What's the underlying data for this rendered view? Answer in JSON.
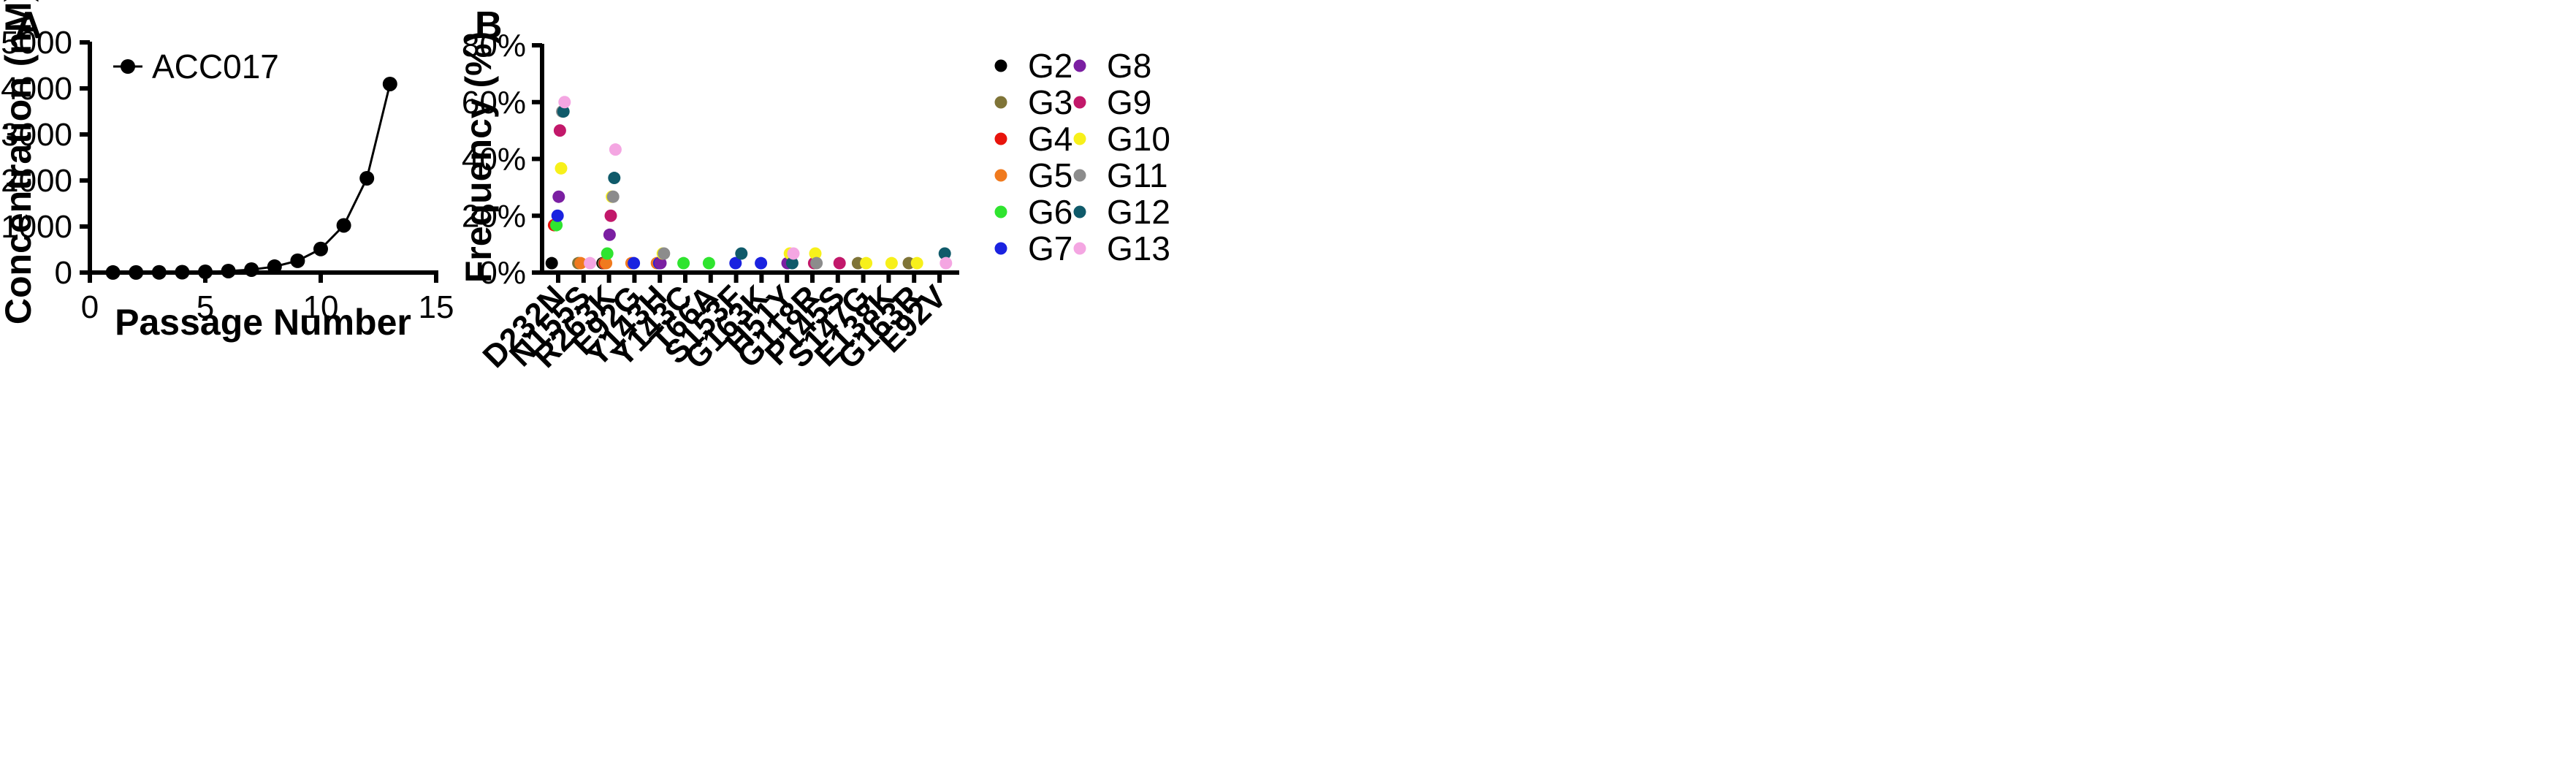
{
  "chart_data": [
    {
      "panel": "A",
      "type": "line",
      "title": "",
      "xlabel": "Passage Number",
      "ylabel": "Concentration (nM)",
      "xlim": [
        0,
        15
      ],
      "ylim": [
        0,
        5000
      ],
      "xticks": [
        0,
        5,
        10,
        15
      ],
      "yticks": [
        0,
        1000,
        2000,
        3000,
        4000,
        5000
      ],
      "grid": false,
      "legend_position": "top-left",
      "series": [
        {
          "name": "ACC017",
          "color": "#000000",
          "marker": "circle",
          "x": [
            1,
            2,
            3,
            4,
            5,
            6,
            7,
            8,
            9,
            10,
            11,
            12,
            13
          ],
          "y": [
            1,
            2,
            4,
            8,
            16,
            32,
            64,
            128,
            256,
            512,
            1024,
            2048,
            4096
          ]
        }
      ]
    },
    {
      "panel": "B",
      "type": "scatter",
      "title": "",
      "xlabel": "",
      "ylabel": "Frequency (%)",
      "ylim": [
        0,
        80
      ],
      "yticks": [
        0,
        20,
        40,
        60,
        80
      ],
      "ytick_labels": [
        "0%",
        "20%",
        "40%",
        "60%",
        "80%"
      ],
      "grid": false,
      "legend_position": "right",
      "categories": [
        "D232N",
        "N155S",
        "R263K",
        "E92G",
        "Y143H",
        "Y143C",
        "T66A",
        "S153F",
        "G163K",
        "H51Y",
        "G118R",
        "P145S",
        "S147G",
        "E138K",
        "G163R",
        "E92V"
      ],
      "series": [
        {
          "name": "G2",
          "color": "#000000",
          "points": [
            {
              "category": "D232N",
              "value": 3.3
            },
            {
              "category": "R263K",
              "value": 3.3
            }
          ]
        },
        {
          "name": "G3",
          "color": "#7f7437",
          "points": [
            {
              "category": "N155S",
              "value": 3.3
            },
            {
              "category": "R263K",
              "value": 3.3
            },
            {
              "category": "S147G",
              "value": 3.3
            },
            {
              "category": "G163R",
              "value": 3.3
            }
          ]
        },
        {
          "name": "G4",
          "color": "#e8140c",
          "points": [
            {
              "category": "D232N",
              "value": 16.7
            },
            {
              "category": "R263K",
              "value": 3.3
            }
          ]
        },
        {
          "name": "G5",
          "color": "#f07a1e",
          "points": [
            {
              "category": "N155S",
              "value": 3.3
            },
            {
              "category": "R263K",
              "value": 3.3
            },
            {
              "category": "E92G",
              "value": 3.3
            },
            {
              "category": "Y143H",
              "value": 3.3
            }
          ]
        },
        {
          "name": "G6",
          "color": "#2fe42f",
          "points": [
            {
              "category": "D232N",
              "value": 16.7
            },
            {
              "category": "R263K",
              "value": 6.7
            },
            {
              "category": "Y143C",
              "value": 3.3
            },
            {
              "category": "T66A",
              "value": 3.3
            }
          ]
        },
        {
          "name": "G7",
          "color": "#1a22e0",
          "points": [
            {
              "category": "D232N",
              "value": 20
            },
            {
              "category": "E92G",
              "value": 3.3
            },
            {
              "category": "Y143H",
              "value": 3.3
            },
            {
              "category": "S153F",
              "value": 3.3
            },
            {
              "category": "G163K",
              "value": 3.3
            }
          ]
        },
        {
          "name": "G8",
          "color": "#7b1fa2",
          "points": [
            {
              "category": "D232N",
              "value": 26.7
            },
            {
              "category": "R263K",
              "value": 13.3
            },
            {
              "category": "Y143H",
              "value": 3.3
            },
            {
              "category": "H51Y",
              "value": 3.3
            }
          ]
        },
        {
          "name": "G9",
          "color": "#c2186a",
          "points": [
            {
              "category": "D232N",
              "value": 50
            },
            {
              "category": "R263K",
              "value": 20
            },
            {
              "category": "G118R",
              "value": 3.3
            },
            {
              "category": "P145S",
              "value": 3.3
            }
          ]
        },
        {
          "name": "G10",
          "color": "#f7f01a",
          "points": [
            {
              "category": "D232N",
              "value": 36.7
            },
            {
              "category": "R263K",
              "value": 26.7
            },
            {
              "category": "Y143H",
              "value": 6.7
            },
            {
              "category": "H51Y",
              "value": 6.7
            },
            {
              "category": "G118R",
              "value": 6.7
            },
            {
              "category": "S147G",
              "value": 3.3
            },
            {
              "category": "E138K",
              "value": 3.3
            },
            {
              "category": "G163R",
              "value": 3.3
            }
          ]
        },
        {
          "name": "G11",
          "color": "#8c8c8c",
          "points": [
            {
              "category": "D232N",
              "value": 56.7
            },
            {
              "category": "R263K",
              "value": 26.7
            },
            {
              "category": "Y143H",
              "value": 6.7
            },
            {
              "category": "G118R",
              "value": 3.3
            }
          ]
        },
        {
          "name": "G12",
          "color": "#0f5a6a",
          "points": [
            {
              "category": "D232N",
              "value": 56.7
            },
            {
              "category": "R263K",
              "value": 33.3
            },
            {
              "category": "S153F",
              "value": 6.7
            },
            {
              "category": "H51Y",
              "value": 3.3
            },
            {
              "category": "E92V",
              "value": 6.7
            }
          ]
        },
        {
          "name": "G13",
          "color": "#f4a6e2",
          "points": [
            {
              "category": "D232N",
              "value": 60
            },
            {
              "category": "R263K",
              "value": 43.3
            },
            {
              "category": "N155S",
              "value": 3.3
            },
            {
              "category": "H51Y",
              "value": 6.7
            },
            {
              "category": "E92V",
              "value": 3.3
            }
          ]
        }
      ]
    }
  ]
}
